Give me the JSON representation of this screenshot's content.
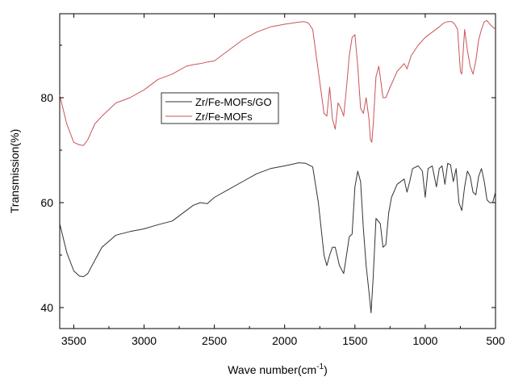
{
  "chart_data": {
    "type": "line",
    "xlabel": "Wave number(cm",
    "xlabel_sup": "-1",
    "xlabel_close": ")",
    "ylabel": "Transmission(%)",
    "xlim": [
      3600,
      500
    ],
    "ylim": [
      36,
      96
    ],
    "x_reversed": true,
    "grid": false,
    "legend_position": "upper-middle",
    "xticks": [
      3500,
      3000,
      2500,
      2000,
      1500,
      1000,
      500
    ],
    "xtick_labels": [
      "3500",
      "3000",
      "2500",
      "2000",
      "1500",
      "1000",
      "500"
    ],
    "yticks": [
      40,
      60,
      80
    ],
    "ytick_labels": [
      "40",
      "60",
      "80"
    ],
    "series": [
      {
        "name": "Zr/Fe-MOFs/GO",
        "color": "#333333",
        "x": [
          3600,
          3550,
          3500,
          3460,
          3430,
          3400,
          3350,
          3300,
          3200,
          3100,
          3000,
          2900,
          2800,
          2700,
          2650,
          2600,
          2550,
          2500,
          2400,
          2300,
          2200,
          2100,
          2000,
          1950,
          1900,
          1850,
          1800,
          1760,
          1720,
          1700,
          1680,
          1660,
          1640,
          1610,
          1580,
          1560,
          1540,
          1520,
          1500,
          1480,
          1460,
          1440,
          1420,
          1400,
          1385,
          1370,
          1350,
          1320,
          1300,
          1280,
          1260,
          1240,
          1200,
          1150,
          1130,
          1110,
          1090,
          1050,
          1020,
          1000,
          980,
          950,
          920,
          900,
          880,
          860,
          840,
          820,
          800,
          780,
          760,
          740,
          720,
          700,
          680,
          660,
          640,
          620,
          600,
          580,
          560,
          540,
          520,
          500
        ],
        "y": [
          56,
          50.5,
          47,
          46,
          45.9,
          46.5,
          49,
          51.5,
          53.8,
          54.5,
          55,
          55.8,
          56.5,
          58.5,
          59.5,
          60,
          59.8,
          61,
          62.5,
          64,
          65.5,
          66.5,
          67,
          67.3,
          67.6,
          67.5,
          66.8,
          60,
          50,
          48,
          50,
          51.5,
          51.5,
          48,
          46.5,
          50,
          53.5,
          54,
          63,
          66,
          64,
          55,
          48,
          43,
          39,
          46,
          57,
          56,
          51.5,
          52,
          58,
          61,
          63.5,
          64.5,
          62,
          64,
          66.5,
          67,
          66,
          61,
          66.5,
          67,
          63,
          66.5,
          67,
          63.5,
          67.5,
          67.2,
          64,
          66.5,
          60,
          58.5,
          63,
          66,
          65,
          62,
          61.5,
          65,
          66.5,
          64,
          60.5,
          60,
          60,
          62
        ]
      },
      {
        "name": "Zr/Fe-MOFs",
        "color": "#c9545a",
        "x": [
          3600,
          3550,
          3500,
          3460,
          3430,
          3400,
          3350,
          3300,
          3200,
          3100,
          3000,
          2900,
          2800,
          2700,
          2650,
          2600,
          2550,
          2500,
          2400,
          2300,
          2200,
          2100,
          2000,
          1950,
          1900,
          1860,
          1830,
          1800,
          1780,
          1760,
          1740,
          1720,
          1700,
          1680,
          1660,
          1640,
          1620,
          1600,
          1580,
          1560,
          1540,
          1520,
          1500,
          1480,
          1460,
          1440,
          1420,
          1400,
          1390,
          1380,
          1370,
          1350,
          1330,
          1300,
          1280,
          1250,
          1200,
          1150,
          1130,
          1100,
          1050,
          1000,
          950,
          900,
          870,
          840,
          810,
          790,
          770,
          750,
          740,
          720,
          700,
          680,
          660,
          640,
          620,
          600,
          580,
          560,
          540,
          520,
          500
        ],
        "y": [
          80.5,
          75,
          71.5,
          71,
          70.9,
          72,
          75,
          76.5,
          79,
          80,
          81.5,
          83.5,
          84.5,
          86,
          86.3,
          86.5,
          86.8,
          87,
          89,
          91,
          92.5,
          93.5,
          94,
          94.2,
          94.4,
          94.5,
          94.2,
          93,
          89,
          85,
          81,
          77,
          76.5,
          82,
          76,
          74,
          79,
          78,
          76.5,
          82,
          88,
          91.5,
          92,
          86,
          78,
          77,
          80,
          76,
          72,
          71.5,
          75,
          84,
          86,
          80,
          80,
          82,
          85,
          86.5,
          85.5,
          88,
          90,
          91.5,
          92.5,
          93.5,
          94.2,
          94.5,
          94.5,
          94,
          93,
          85,
          84.5,
          93,
          89,
          86,
          84.5,
          87,
          91,
          93,
          94.5,
          94.7,
          94,
          93.5,
          93
        ]
      }
    ]
  }
}
